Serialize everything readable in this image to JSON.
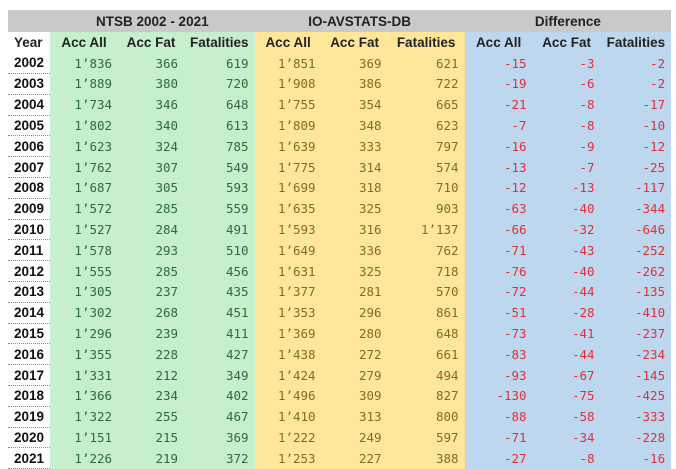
{
  "groups": [
    "NTSB 2002 - 2021",
    "IO-AVSTATS-DB",
    "Difference"
  ],
  "columns": [
    "Year",
    "Acc All",
    "Acc Fat",
    "Fatalities",
    "Acc All",
    "Acc Fat",
    "Fatalities",
    "Acc All",
    "Acc Fat",
    "Fatalities"
  ],
  "rows": [
    [
      "2002",
      "1’836",
      "366",
      "619",
      "1’851",
      "369",
      "621",
      "-15",
      "-3",
      "-2"
    ],
    [
      "2003",
      "1’889",
      "380",
      "720",
      "1’908",
      "386",
      "722",
      "-19",
      "-6",
      "-2"
    ],
    [
      "2004",
      "1’734",
      "346",
      "648",
      "1’755",
      "354",
      "665",
      "-21",
      "-8",
      "-17"
    ],
    [
      "2005",
      "1’802",
      "340",
      "613",
      "1’809",
      "348",
      "623",
      "-7",
      "-8",
      "-10"
    ],
    [
      "2006",
      "1’623",
      "324",
      "785",
      "1’639",
      "333",
      "797",
      "-16",
      "-9",
      "-12"
    ],
    [
      "2007",
      "1’762",
      "307",
      "549",
      "1’775",
      "314",
      "574",
      "-13",
      "-7",
      "-25"
    ],
    [
      "2008",
      "1’687",
      "305",
      "593",
      "1’699",
      "318",
      "710",
      "-12",
      "-13",
      "-117"
    ],
    [
      "2009",
      "1’572",
      "285",
      "559",
      "1’635",
      "325",
      "903",
      "-63",
      "-40",
      "-344"
    ],
    [
      "2010",
      "1’527",
      "284",
      "491",
      "1’593",
      "316",
      "1’137",
      "-66",
      "-32",
      "-646"
    ],
    [
      "2011",
      "1’578",
      "293",
      "510",
      "1’649",
      "336",
      "762",
      "-71",
      "-43",
      "-252"
    ],
    [
      "2012",
      "1’555",
      "285",
      "456",
      "1’631",
      "325",
      "718",
      "-76",
      "-40",
      "-262"
    ],
    [
      "2013",
      "1’305",
      "237",
      "435",
      "1’377",
      "281",
      "570",
      "-72",
      "-44",
      "-135"
    ],
    [
      "2014",
      "1’302",
      "268",
      "451",
      "1’353",
      "296",
      "861",
      "-51",
      "-28",
      "-410"
    ],
    [
      "2015",
      "1’296",
      "239",
      "411",
      "1’369",
      "280",
      "648",
      "-73",
      "-41",
      "-237"
    ],
    [
      "2016",
      "1’355",
      "228",
      "427",
      "1’438",
      "272",
      "661",
      "-83",
      "-44",
      "-234"
    ],
    [
      "2017",
      "1’331",
      "212",
      "349",
      "1’424",
      "279",
      "494",
      "-93",
      "-67",
      "-145"
    ],
    [
      "2018",
      "1’366",
      "234",
      "402",
      "1’496",
      "309",
      "827",
      "-130",
      "-75",
      "-425"
    ],
    [
      "2019",
      "1’322",
      "255",
      "467",
      "1’410",
      "313",
      "800",
      "-88",
      "-58",
      "-333"
    ],
    [
      "2020",
      "1’151",
      "215",
      "369",
      "1’222",
      "249",
      "597",
      "-71",
      "-34",
      "-228"
    ],
    [
      "2021",
      "1’226",
      "219",
      "372",
      "1’253",
      "227",
      "388",
      "-27",
      "-8",
      "-16"
    ]
  ],
  "colors": {
    "header_gray": "#c9c9c9",
    "ntsb_green": "#c6efce",
    "db_yellow": "#ffe699",
    "diff_blue": "#bdd7ee",
    "diff_text_red": "#e0303a"
  }
}
